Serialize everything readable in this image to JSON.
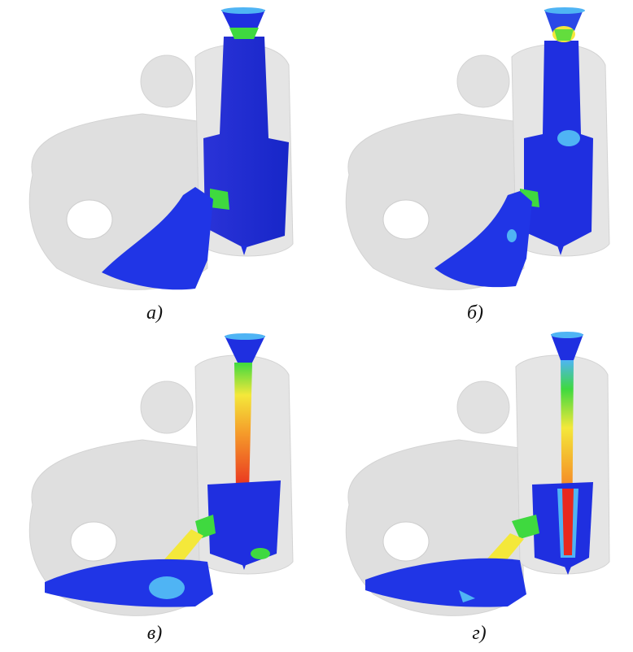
{
  "panels": [
    {
      "label": "а)"
    },
    {
      "label": "б)"
    },
    {
      "label": "в)"
    },
    {
      "label": "г)"
    }
  ],
  "palette": {
    "mold": "#d9d9d9",
    "mold_edge": "#c4c4c4",
    "metal_blue": "#1f2fe0",
    "metal_light": "#4fb4f4",
    "green": "#3fd93f",
    "yellow": "#f4e83a",
    "orange": "#f59a2a",
    "red": "#e8281e"
  }
}
